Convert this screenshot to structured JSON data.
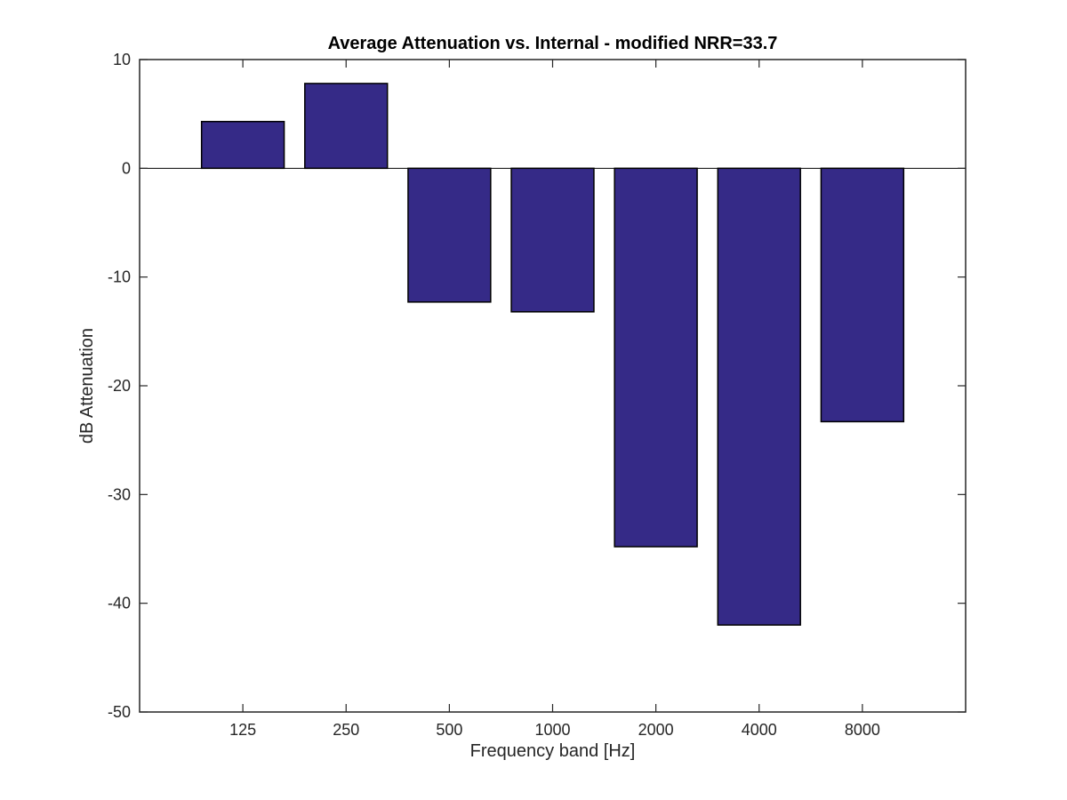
{
  "chart_data": {
    "type": "bar",
    "title": "Average Attenuation vs. Internal - modified NRR=33.7",
    "xlabel": "Frequency band [Hz]",
    "ylabel": "dB Attenuation",
    "categories": [
      "125",
      "250",
      "500",
      "1000",
      "2000",
      "4000",
      "8000"
    ],
    "values": [
      4.3,
      7.8,
      -12.3,
      -13.2,
      -34.8,
      -42.0,
      -23.3
    ],
    "ylim": [
      -50,
      10
    ],
    "yticks": [
      10,
      0,
      -10,
      -20,
      -30,
      -40,
      -50
    ],
    "xlim": [
      0,
      8
    ],
    "grid": false,
    "baseline": 0,
    "colors": {
      "bar_fill": "#352a87",
      "bar_edge": "#000000",
      "axis": "#262626"
    }
  }
}
